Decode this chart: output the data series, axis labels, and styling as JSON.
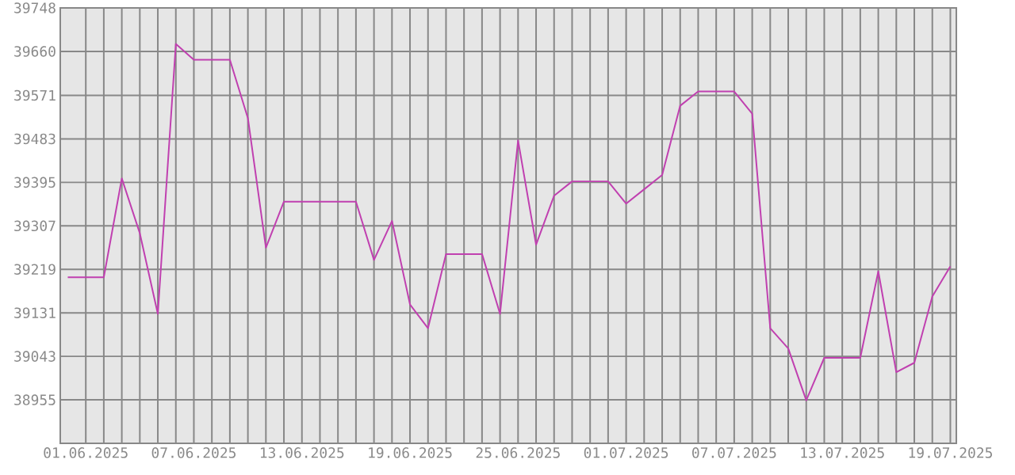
{
  "chart_data": {
    "type": "line",
    "x": [
      "2025-05-31",
      "2025-06-01",
      "2025-06-02",
      "2025-06-03",
      "2025-06-04",
      "2025-06-05",
      "2025-06-06",
      "2025-06-07",
      "2025-06-08",
      "2025-06-09",
      "2025-06-10",
      "2025-06-11",
      "2025-06-12",
      "2025-06-13",
      "2025-06-14",
      "2025-06-15",
      "2025-06-16",
      "2025-06-17",
      "2025-06-18",
      "2025-06-19",
      "2025-06-20",
      "2025-06-21",
      "2025-06-22",
      "2025-06-23",
      "2025-06-24",
      "2025-06-25",
      "2025-06-26",
      "2025-06-27",
      "2025-06-28",
      "2025-06-29",
      "2025-06-30",
      "2025-07-01",
      "2025-07-02",
      "2025-07-03",
      "2025-07-04",
      "2025-07-05",
      "2025-07-06",
      "2025-07-07",
      "2025-07-08",
      "2025-07-09",
      "2025-07-10",
      "2025-07-11",
      "2025-07-12",
      "2025-07-13",
      "2025-07-14",
      "2025-07-15",
      "2025-07-16",
      "2025-07-17",
      "2025-07-18",
      "2025-07-19"
    ],
    "series": [
      {
        "color": "#c040b0",
        "values": [
          39203,
          39203,
          39203,
          39403,
          39292,
          39129,
          39675,
          39643,
          39643,
          39643,
          39525,
          39263,
          39356,
          39356,
          39356,
          39356,
          39356,
          39238,
          39317,
          39148,
          39100,
          39250,
          39250,
          39250,
          39129,
          39480,
          39269,
          39368,
          39397,
          39397,
          39397,
          39352,
          39381,
          39410,
          39550,
          39579,
          39579,
          39579,
          39534,
          39100,
          39059,
          38954,
          39040,
          39040,
          39040,
          39215,
          39011,
          39030,
          39164,
          39225
        ]
      }
    ],
    "xlim": [
      "2025-05-30T14:00",
      "2025-07-19T08:00"
    ],
    "xticks": [
      {
        "value": "2025-06-01",
        "label": "01.06.2025"
      },
      {
        "value": "2025-06-07",
        "label": "07.06.2025"
      },
      {
        "value": "2025-06-13",
        "label": "13.06.2025"
      },
      {
        "value": "2025-06-19",
        "label": "19.06.2025"
      },
      {
        "value": "2025-06-25",
        "label": "25.06.2025"
      },
      {
        "value": "2025-07-01",
        "label": "01.07.2025"
      },
      {
        "value": "2025-07-07",
        "label": "07.07.2025"
      },
      {
        "value": "2025-07-13",
        "label": "13.07.2025"
      },
      {
        "value": "2025-07-19",
        "label": "19.07.2025"
      }
    ],
    "ylim": [
      38867,
      39748
    ],
    "yticks": [
      38955,
      39043,
      39131,
      39219,
      39307,
      39395,
      39483,
      39571,
      39660,
      39748
    ],
    "grid": true,
    "marker": "none",
    "line_style": "solid"
  }
}
